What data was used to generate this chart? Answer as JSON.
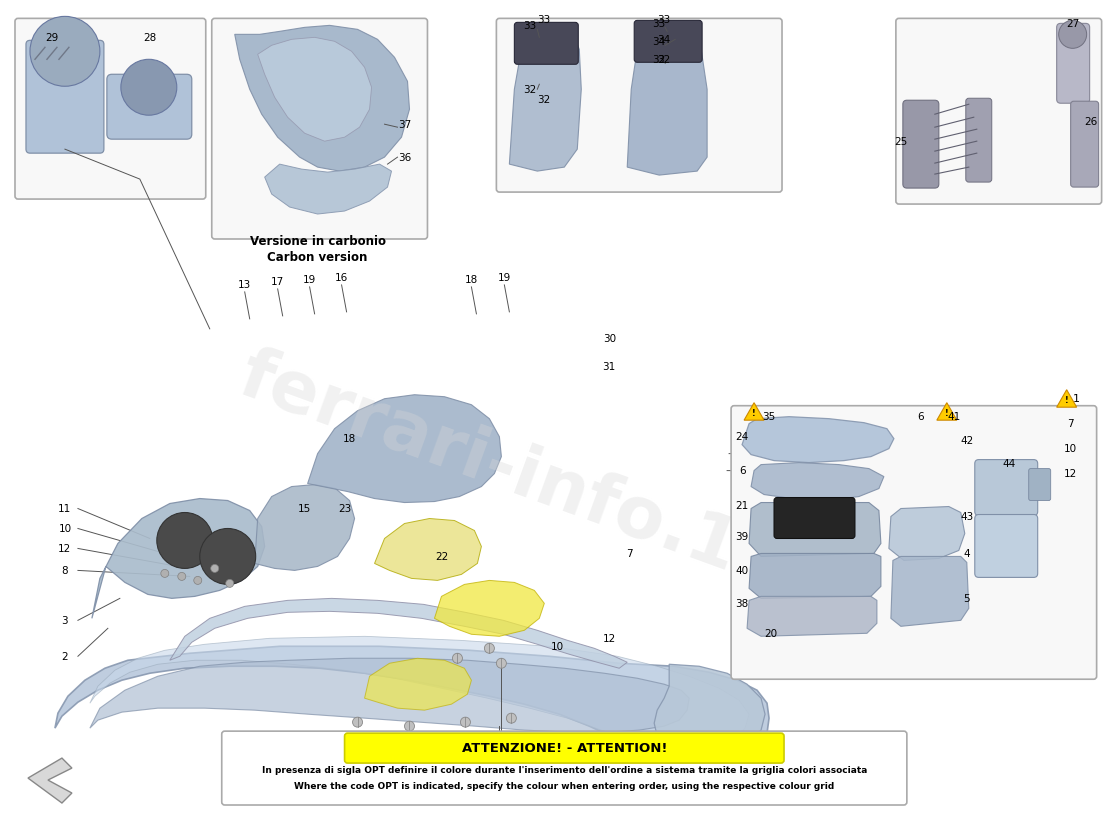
{
  "bg_color": "#ffffff",
  "fig_width": 11.0,
  "fig_height": 8.0,
  "text_color": "#000000",
  "label_fontsize": 7.5,
  "watermark_text": "ferrari-info.1995",
  "watermark_color": "#d0d0d0",
  "warning_header": "ATTENZIONE! - ATTENTION!",
  "warning_line1": "In presenza di sigla OPT definire il colore durante l'inserimento dell'ordine a sistema tramite la griglia colori associata",
  "warning_line2": "Where the code OPT is indicated, specify the colour when entering order, using the respective colour grid",
  "carbon_line1": "Versione in carbonio",
  "carbon_line2": "Carbon version"
}
